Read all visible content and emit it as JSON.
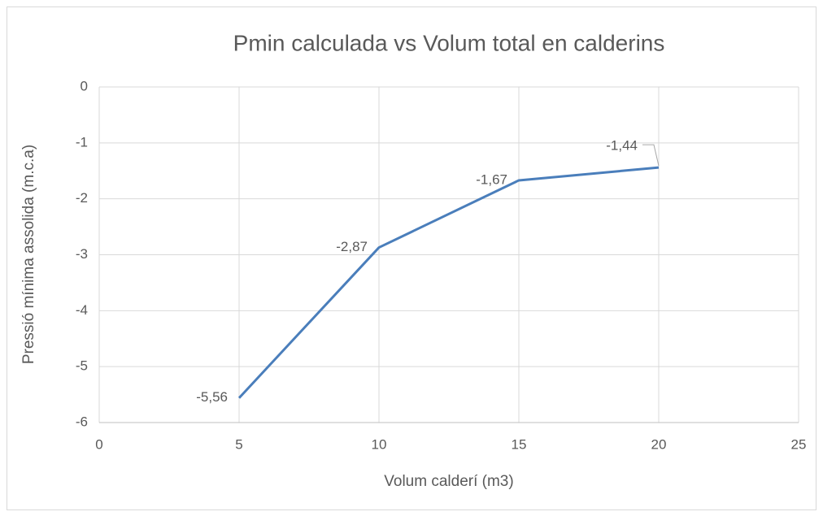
{
  "chart_data": {
    "type": "line",
    "title": "Pmin calculada vs Volum total en calderins",
    "xlabel": "Volum calderí (m3)",
    "ylabel": "Pressió mínima assolida (m.c.a)",
    "x": [
      5,
      10,
      15,
      20
    ],
    "values": [
      -5.56,
      -2.87,
      -1.67,
      -1.44
    ],
    "value_labels": [
      "-5,56",
      "-2,87",
      "-1,67",
      "-1,44"
    ],
    "color": "#4a7ebb",
    "xlim": [
      0,
      25
    ],
    "xticks": [
      0,
      5,
      10,
      15,
      20,
      25
    ],
    "ylim": [
      -6,
      0
    ],
    "yticks": [
      0,
      -1,
      -2,
      -3,
      -4,
      -5,
      -6
    ],
    "grid": true
  }
}
